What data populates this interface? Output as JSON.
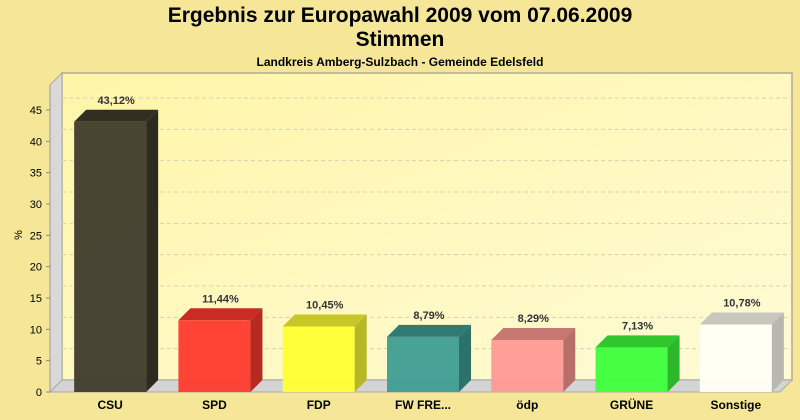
{
  "chart_data": {
    "type": "bar",
    "title": "Ergebnis zur Europawahl 2009 vom 07.06.2009",
    "subtitle": "Stimmen",
    "subsubtitle": "Landkreis Amberg-Sulzbach - Gemeinde Edelsfeld",
    "xlabel": "",
    "ylabel": "%",
    "ylim": [
      0,
      45
    ],
    "yticks": [
      0,
      5,
      10,
      15,
      20,
      25,
      30,
      35,
      40,
      45
    ],
    "grid": true,
    "categories": [
      "CSU",
      "SPD",
      "FDP",
      "FW FRE...",
      "ödp",
      "GRÜNE",
      "Sonstige"
    ],
    "values": [
      43.12,
      11.44,
      10.45,
      8.79,
      8.29,
      7.13,
      10.78
    ],
    "data_labels": [
      "43,12%",
      "11,44%",
      "10,45%",
      "8,79%",
      "8,29%",
      "7,13%",
      "10,78%"
    ],
    "colors": [
      "#3f3b2c",
      "#ff3a2e",
      "#ffff33",
      "#3e9d94",
      "#ff9a93",
      "#3dff3a",
      "#fffff4"
    ]
  }
}
